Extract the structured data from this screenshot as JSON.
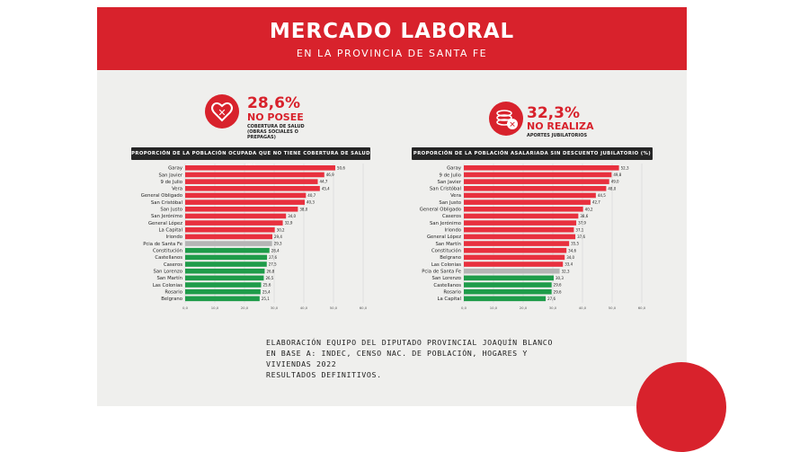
{
  "header": {
    "title": "MERCADO LABORAL",
    "subtitle": "EN LA PROVINCIA DE SANTA FE"
  },
  "stats": {
    "health": {
      "value": "28,6%",
      "label": "NO POSEE",
      "desc": [
        "COBERTURA DE SALUD",
        "(OBRAS SOCIALES O",
        "PREPAGAS)"
      ],
      "icon": "heart-x-icon"
    },
    "pension": {
      "value": "32,3%",
      "label": "NO REALIZA",
      "desc": [
        "APORTES JUBILATORIOS"
      ],
      "icon": "coins-x-icon"
    }
  },
  "colors": {
    "red": "#e8303e",
    "gray": "#b5b5b5",
    "green": "#1f9c4a",
    "brand": "#d8222c"
  },
  "footer": {
    "lines": [
      "ELABORACIÓN EQUIPO DEL DIPUTADO PROVINCIAL JOAQUÍN BLANCO",
      "EN BASE A: INDEC, CENSO NAC. DE POBLACIÓN, HOGARES Y VIVIENDAS 2022",
      "RESULTADOS DEFINITIVOS."
    ]
  },
  "chart_data": [
    {
      "type": "bar",
      "orientation": "horizontal",
      "title": "PROPORCIÓN DE LA POBLACIÓN OCUPADA QUE NO TIENE COBERTURA DE SALUD (%)",
      "categories": [
        "Garay",
        "San Javier",
        "9 de Julio",
        "Vera",
        "General Obligado",
        "San Cristóbal",
        "San Justo",
        "San Jerónimo",
        "General López",
        "La Capital",
        "Iriondo",
        "Pcia de Santa Fe",
        "Constitución",
        "Castellanos",
        "Caseros",
        "San Lorenzo",
        "San Martín",
        "Las Colonias",
        "Rosario",
        "Belgrano"
      ],
      "values": [
        50.6,
        46.9,
        44.7,
        45.4,
        40.7,
        40.3,
        38.0,
        34.0,
        32.9,
        30.2,
        29.4,
        29.3,
        28.4,
        27.6,
        27.5,
        26.8,
        26.5,
        25.6,
        25.4,
        25.1
      ],
      "value_labels": [
        "50,6",
        "46,9",
        "44,7",
        "45,4",
        "40,7",
        "40,3",
        "38,0",
        "34,0",
        "32,9",
        "30,2",
        "29,4",
        "29,3",
        "28,4",
        "27,6",
        "27,5",
        "26,8",
        "26,5",
        "25,6",
        "25,4",
        "25,1"
      ],
      "colors": [
        "red",
        "red",
        "red",
        "red",
        "red",
        "red",
        "red",
        "red",
        "red",
        "red",
        "red",
        "gray",
        "green",
        "green",
        "green",
        "green",
        "green",
        "green",
        "green",
        "green"
      ],
      "xlim": [
        0,
        60
      ],
      "xticks": [
        "0,0",
        "10,0",
        "20,0",
        "30,0",
        "40,0",
        "50,0",
        "60,0"
      ]
    },
    {
      "type": "bar",
      "orientation": "horizontal",
      "title": "PROPORCIÓN DE LA POBLACIÓN ASALARIADA SIN DESCUENTO JUBILATORIO (%)",
      "categories": [
        "Garay",
        "9 de Julio",
        "San Javier",
        "San Cristóbal",
        "Vera",
        "San Justo",
        "General Obligado",
        "Caseros",
        "San Jerónimo",
        "Iriondo",
        "General López",
        "San Martín",
        "Constitución",
        "Belgrano",
        "Las Colonias",
        "Pcia de Santa Fe",
        "San Lorenzo",
        "Castellanos",
        "Rosario",
        "La Capital"
      ],
      "values": [
        52.3,
        49.8,
        49.0,
        48.0,
        44.5,
        42.7,
        40.2,
        38.6,
        37.9,
        37.1,
        37.6,
        35.5,
        34.6,
        34.0,
        33.4,
        32.3,
        30.3,
        29.6,
        29.6,
        27.6
      ],
      "value_labels": [
        "52,3",
        "49,8",
        "49,0",
        "48,0",
        "44,5",
        "42,7",
        "40,2",
        "38,6",
        "37,9",
        "37,1",
        "37,6",
        "35,5",
        "34,6",
        "34,0",
        "33,4",
        "32,3",
        "30,3",
        "29,6",
        "29,6",
        "27,6"
      ],
      "colors": [
        "red",
        "red",
        "red",
        "red",
        "red",
        "red",
        "red",
        "red",
        "red",
        "red",
        "red",
        "red",
        "red",
        "red",
        "red",
        "gray",
        "green",
        "green",
        "green",
        "green"
      ],
      "xlim": [
        0,
        60
      ],
      "xticks": [
        "0,0",
        "10,0",
        "20,0",
        "30,0",
        "40,0",
        "50,0",
        "60,0"
      ]
    }
  ]
}
